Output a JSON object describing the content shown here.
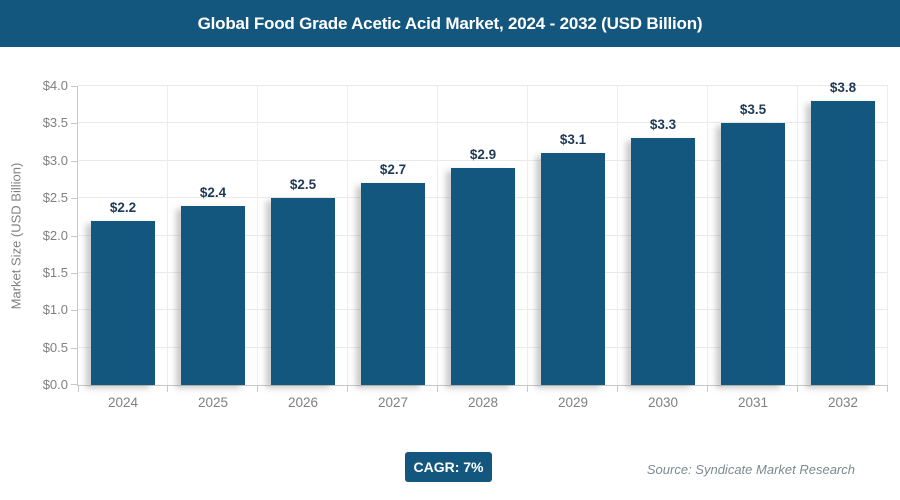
{
  "header": {
    "title": "Global Food Grade Acetic Acid Market, 2024 - 2032 (USD Billion)",
    "bg_color": "#14577E",
    "text_color": "#FFFFFF"
  },
  "chart_data": {
    "type": "bar",
    "title": "Global Food Grade Acetic Acid Market, 2024 - 2032 (USD Billion)",
    "categories": [
      "2024",
      "2025",
      "2026",
      "2027",
      "2028",
      "2029",
      "2030",
      "2031",
      "2032"
    ],
    "values": [
      2.2,
      2.4,
      2.5,
      2.7,
      2.9,
      3.1,
      3.3,
      3.5,
      3.8
    ],
    "bar_labels": [
      "$2.2",
      "$2.4",
      "$2.5",
      "$2.7",
      "$2.9",
      "$3.1",
      "$3.3",
      "$3.5",
      "$3.8"
    ],
    "xlabel": "",
    "ylabel": "Market Size (USD Billion)",
    "ylim": [
      0,
      4.0
    ],
    "ytick_step": 0.5,
    "ytick_labels": [
      "$0.0",
      "$0.5",
      "$1.0",
      "$1.5",
      "$2.0",
      "$2.5",
      "$3.0",
      "$3.5",
      "$4.0"
    ],
    "grid": true,
    "legend": false,
    "bar_color": "#14577E",
    "value_label_color": "#1F3A56",
    "axis_label_color": "#808080"
  },
  "footer": {
    "cagr_label": "CAGR: 7%",
    "source": "Source: Syndicate Market Research"
  }
}
